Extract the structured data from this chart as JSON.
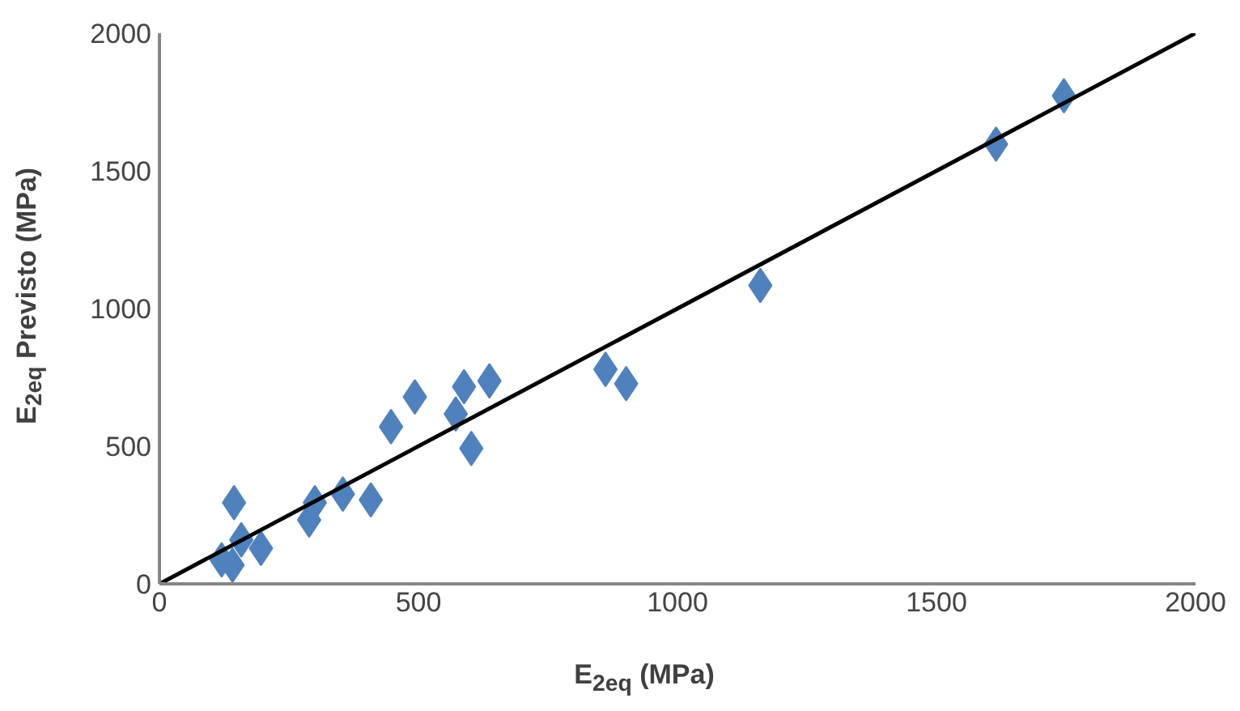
{
  "chart_data": {
    "type": "scatter",
    "xlabel": "E$_{2eq}$ (MPa)",
    "ylabel": "E$_{2eq}$ Previsto (MPa)",
    "xlim": [
      0,
      2000
    ],
    "ylim": [
      0,
      2000
    ],
    "xticks": [
      0,
      500,
      1000,
      1500,
      2000
    ],
    "yticks": [
      0,
      500,
      1000,
      1500,
      2000
    ],
    "grid": false,
    "marker": "diamond",
    "series": [
      {
        "color": "#4f81bd",
        "x": [
          120,
          141,
          144,
          158,
          196,
          289,
          300,
          354,
          408,
          447,
          493,
          572,
          588,
          637,
          602,
          861,
          901,
          1160,
          1615,
          1746
        ],
        "values": [
          87,
          68,
          295,
          160,
          129,
          232,
          295,
          326,
          305,
          571,
          679,
          617,
          716,
          737,
          492,
          779,
          727,
          1084,
          1597,
          1773
        ]
      },
      {
        "type": "line",
        "color": "#000000",
        "marker": "none",
        "x": [
          0,
          2000
        ],
        "values": [
          0,
          2000
        ]
      }
    ]
  }
}
